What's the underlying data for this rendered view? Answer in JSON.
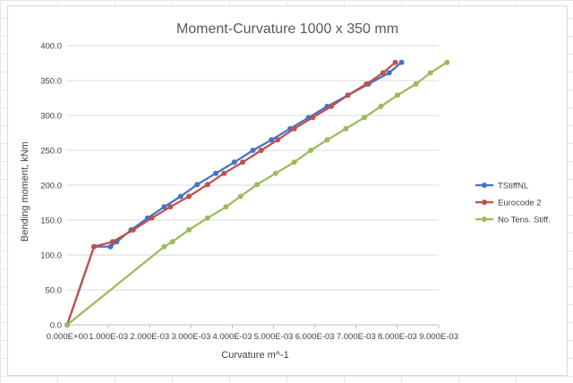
{
  "chart_data": {
    "type": "line",
    "title": "Moment-Curvature 1000 x 350 mm",
    "xlabel": "Curvature m^-1",
    "ylabel": "Bending moment, kNm",
    "xlim": [
      0,
      0.009
    ],
    "ylim": [
      0,
      400
    ],
    "x_ticks": [
      "0.000E+00",
      "1.000E-03",
      "2.000E-03",
      "3.000E-03",
      "4.000E-03",
      "5.000E-03",
      "6.000E-03",
      "7.000E-03",
      "8.000E-03",
      "9.000E-03"
    ],
    "y_ticks": [
      "0.0",
      "50.0",
      "100.0",
      "150.0",
      "200.0",
      "250.0",
      "300.0",
      "350.0",
      "400.0"
    ],
    "grid": "horizontal",
    "legend_position": "right",
    "series": [
      {
        "name": "TStiffNL",
        "color": "#4472c4",
        "points": [
          [
            0,
            0
          ],
          [
            0.00065,
            112
          ],
          [
            0.00105,
            112
          ],
          [
            0.0012,
            119
          ],
          [
            0.00155,
            136
          ],
          [
            0.00195,
            153
          ],
          [
            0.00235,
            169
          ],
          [
            0.00275,
            184
          ],
          [
            0.00315,
            201
          ],
          [
            0.0036,
            217
          ],
          [
            0.00405,
            233
          ],
          [
            0.0045,
            250
          ],
          [
            0.00495,
            265
          ],
          [
            0.0054,
            281
          ],
          [
            0.00585,
            297
          ],
          [
            0.0063,
            313
          ],
          [
            0.0068,
            329
          ],
          [
            0.0073,
            345
          ],
          [
            0.0078,
            361
          ],
          [
            0.0081,
            376
          ]
        ]
      },
      {
        "name": "Eurocode 2",
        "color": "#c0504d",
        "points": [
          [
            0,
            0
          ],
          [
            0.00065,
            112
          ],
          [
            0.0011,
            119
          ],
          [
            0.0016,
            136
          ],
          [
            0.00205,
            153
          ],
          [
            0.0025,
            169
          ],
          [
            0.00295,
            184
          ],
          [
            0.0034,
            201
          ],
          [
            0.0038,
            217
          ],
          [
            0.00425,
            233
          ],
          [
            0.0047,
            250
          ],
          [
            0.0051,
            265
          ],
          [
            0.0055,
            281
          ],
          [
            0.00595,
            297
          ],
          [
            0.0064,
            313
          ],
          [
            0.0068,
            329
          ],
          [
            0.00725,
            345
          ],
          [
            0.00765,
            361
          ],
          [
            0.00795,
            376
          ]
        ]
      },
      {
        "name": "No Tens. Stiff.",
        "color": "#9bbb59",
        "points": [
          [
            0,
            0
          ],
          [
            0.00235,
            112
          ],
          [
            0.00255,
            119
          ],
          [
            0.00295,
            136
          ],
          [
            0.0034,
            153
          ],
          [
            0.00385,
            169
          ],
          [
            0.0042,
            184
          ],
          [
            0.0046,
            201
          ],
          [
            0.00505,
            217
          ],
          [
            0.0055,
            233
          ],
          [
            0.0059,
            250
          ],
          [
            0.0063,
            265
          ],
          [
            0.00675,
            281
          ],
          [
            0.0072,
            297
          ],
          [
            0.0076,
            313
          ],
          [
            0.008,
            329
          ],
          [
            0.00845,
            345
          ],
          [
            0.0088,
            361
          ],
          [
            0.0092,
            376
          ]
        ]
      }
    ]
  }
}
